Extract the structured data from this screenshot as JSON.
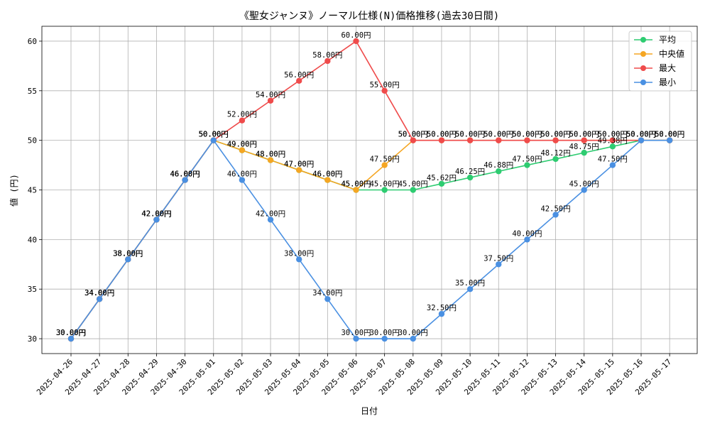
{
  "chart_data": {
    "type": "line",
    "title": "《聖女ジャンヌ》ノーマル仕様(N)価格推移(過去30日間)",
    "xlabel": "日付",
    "ylabel": "値 (円)",
    "ylim": [
      28.5,
      61.5
    ],
    "yticks": [
      30,
      35,
      40,
      45,
      50,
      55,
      60
    ],
    "grid": true,
    "legend_position": "top-right",
    "label_suffix": "円",
    "categories": [
      "2025-04-26",
      "2025-04-27",
      "2025-04-28",
      "2025-04-29",
      "2025-04-30",
      "2025-05-01",
      "2025-05-02",
      "2025-05-03",
      "2025-05-04",
      "2025-05-05",
      "2025-05-06",
      "2025-05-07",
      "2025-05-08",
      "2025-05-09",
      "2025-05-10",
      "2025-05-11",
      "2025-05-12",
      "2025-05-13",
      "2025-05-14",
      "2025-05-15",
      "2025-05-16",
      "2025-05-17"
    ],
    "series": [
      {
        "name": "平均",
        "color": "#2ecc71",
        "values": [
          30.0,
          34.0,
          38.0,
          42.0,
          46.0,
          50.0,
          49.0,
          48.0,
          47.0,
          46.0,
          45.0,
          45.0,
          45.0,
          45.62,
          46.25,
          46.88,
          47.5,
          48.12,
          48.75,
          49.38,
          50.0,
          50.0
        ]
      },
      {
        "name": "中央値",
        "color": "#f5a623",
        "values": [
          30.0,
          34.0,
          38.0,
          42.0,
          46.0,
          50.0,
          49.0,
          48.0,
          47.0,
          46.0,
          45.0,
          47.5,
          50.0,
          50.0,
          50.0,
          50.0,
          50.0,
          50.0,
          50.0,
          50.0,
          50.0,
          50.0
        ]
      },
      {
        "name": "最大",
        "color": "#ef4b4b",
        "values": [
          30.0,
          34.0,
          38.0,
          42.0,
          46.0,
          50.0,
          52.0,
          54.0,
          56.0,
          58.0,
          60.0,
          55.0,
          50.0,
          50.0,
          50.0,
          50.0,
          50.0,
          50.0,
          50.0,
          50.0,
          50.0,
          50.0
        ]
      },
      {
        "name": "最小",
        "color": "#4a90e2",
        "values": [
          30.0,
          34.0,
          38.0,
          42.0,
          46.0,
          50.0,
          46.0,
          42.0,
          38.0,
          34.0,
          30.0,
          30.0,
          30.0,
          32.5,
          35.0,
          37.5,
          40.0,
          42.5,
          45.0,
          47.5,
          50.0,
          50.0
        ]
      }
    ]
  }
}
